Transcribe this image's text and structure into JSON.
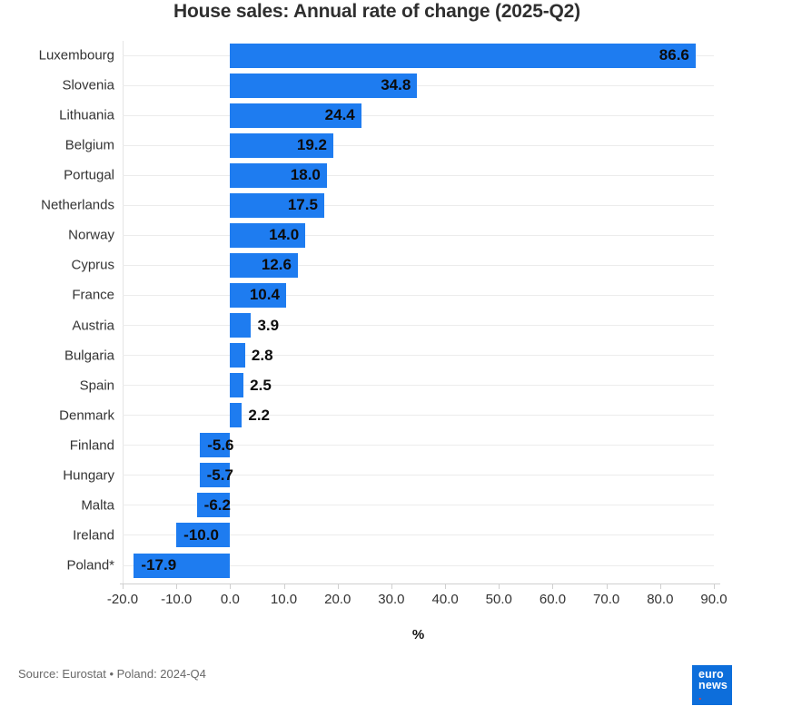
{
  "title": "House sales: Annual rate of change (2025-Q2)",
  "chart_data": {
    "type": "bar",
    "orientation": "horizontal",
    "title": "House sales: Annual rate of change (2025-Q2)",
    "categories": [
      "Luxembourg",
      "Slovenia",
      "Lithuania",
      "Belgium",
      "Portugal",
      "Netherlands",
      "Norway",
      "Cyprus",
      "France",
      "Austria",
      "Bulgaria",
      "Spain",
      "Denmark",
      "Finland",
      "Hungary",
      "Malta",
      "Ireland",
      "Poland*"
    ],
    "values": [
      86.6,
      34.8,
      24.4,
      19.2,
      18.0,
      17.5,
      14.0,
      12.6,
      10.4,
      3.9,
      2.8,
      2.5,
      2.2,
      -5.6,
      -5.7,
      -6.2,
      -10.0,
      -17.9
    ],
    "xlabel": "%",
    "xlim": [
      -20,
      90
    ],
    "x_ticks": [
      -20,
      -10,
      0,
      10,
      20,
      30,
      40,
      50,
      60,
      70,
      80,
      90
    ],
    "x_tick_labels": [
      "-20.0",
      "-10.0",
      "0.0",
      "10.0",
      "20.0",
      "30.0",
      "40.0",
      "50.0",
      "60.0",
      "70.0",
      "80.0",
      "90.0"
    ],
    "grid": "horizontal gridline per category",
    "legend": "none",
    "bar_color": "#1e7cf0",
    "gridline_color": "#ececec",
    "axis_color": "#cfcfcf",
    "value_label_color": "#0c0c0c"
  },
  "footer": {
    "source": "Source: Eurostat • Poland: 2024-Q4"
  },
  "logo": {
    "text_line1": "euro",
    "text_line2": "news",
    "dot": ".",
    "bg_color": "#0d6edb",
    "text_color": "#ffffff",
    "dot_color": "#e8402e"
  }
}
